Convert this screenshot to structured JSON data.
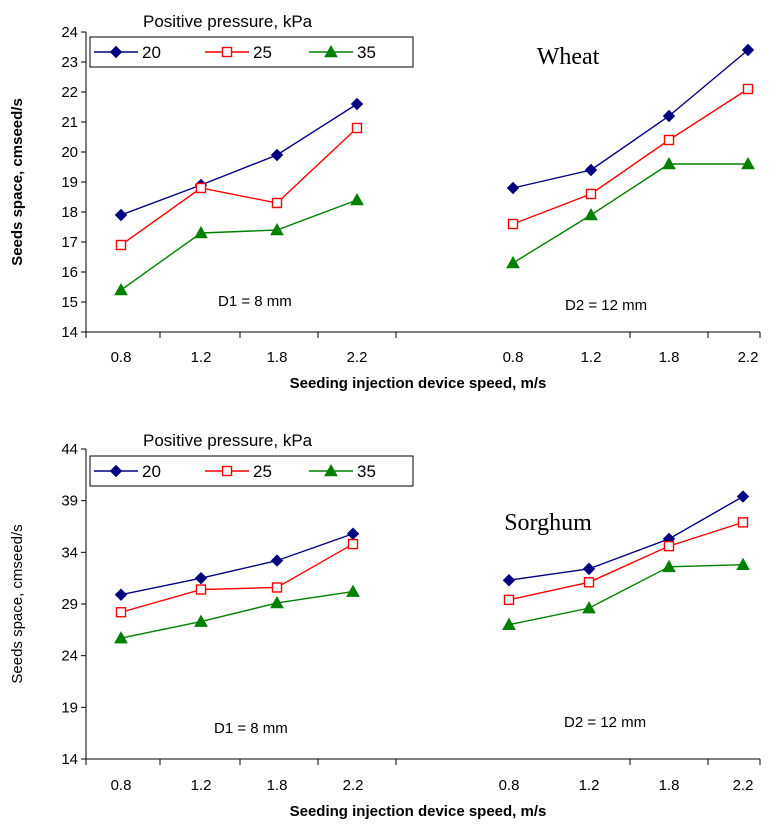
{
  "chart_data": [
    {
      "type": "line",
      "title": "Wheat",
      "xlabel": "Seeding injection device speed, m/s",
      "ylabel": "Seeds space, cmseed/s",
      "ylim": [
        14,
        24
      ],
      "yticks": [
        "14",
        "15",
        "16",
        "17",
        "18",
        "19",
        "20",
        "21",
        "22",
        "23",
        "24"
      ],
      "categories": [
        "0.8",
        "1.2",
        "1.8",
        "2.2",
        "0.8",
        "1.2",
        "1.8",
        "2.2"
      ],
      "legend_title": "Positive pressure, kPa",
      "legend_position": "top-left",
      "annotations": [
        "D1 = 8 mm",
        "D2 = 12 mm"
      ],
      "grid": false,
      "series": [
        {
          "name": "20",
          "color": "#000080",
          "marker": "diamond",
          "values": [
            17.9,
            18.9,
            19.9,
            21.6,
            18.8,
            19.4,
            21.2,
            23.4
          ]
        },
        {
          "name": "25",
          "color": "#ff0000",
          "marker": "square-open",
          "values": [
            16.9,
            18.8,
            18.3,
            20.8,
            17.6,
            18.6,
            20.4,
            22.1
          ]
        },
        {
          "name": "35",
          "color": "#008000",
          "marker": "triangle",
          "values": [
            15.4,
            17.3,
            17.4,
            18.4,
            16.3,
            17.9,
            19.6,
            19.6
          ]
        }
      ]
    },
    {
      "type": "line",
      "title": "Sorghum",
      "xlabel": "Seeding injection device speed, m/s",
      "ylabel": "Seeds space, cmseed/s",
      "ylim": [
        14,
        44
      ],
      "yticks": [
        "14",
        "19",
        "24",
        "29",
        "34",
        "39",
        "44"
      ],
      "categories": [
        "0.8",
        "1.2",
        "1.8",
        "2.2",
        "0.8",
        "1.2",
        "1.8",
        "2.2"
      ],
      "legend_title": "Positive pressure, kPa",
      "legend_position": "top-left",
      "annotations": [
        "D1 = 8 mm",
        "D2 = 12 mm"
      ],
      "grid": false,
      "series": [
        {
          "name": "20",
          "color": "#000080",
          "marker": "diamond",
          "values": [
            29.9,
            31.5,
            33.2,
            35.8,
            31.3,
            32.4,
            35.3,
            39.4
          ]
        },
        {
          "name": "25",
          "color": "#ff0000",
          "marker": "square-open",
          "values": [
            28.2,
            30.4,
            30.6,
            34.8,
            29.4,
            31.1,
            34.6,
            36.9
          ]
        },
        {
          "name": "35",
          "color": "#008000",
          "marker": "triangle",
          "values": [
            25.7,
            27.3,
            29.1,
            30.2,
            27.0,
            28.6,
            32.6,
            32.8
          ]
        }
      ]
    }
  ]
}
